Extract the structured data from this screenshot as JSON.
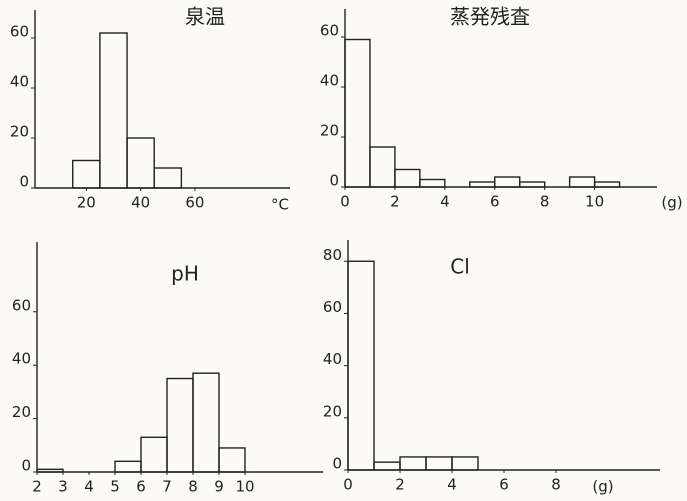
{
  "chart_data": [
    {
      "type": "histogram",
      "title": "泉温",
      "x_label": "°C",
      "color": "#222222",
      "bins": [
        15,
        25,
        35,
        45,
        55
      ],
      "values": [
        11,
        62,
        20,
        8
      ],
      "xlim": [
        0,
        95
      ],
      "xticks": [
        20,
        40,
        60
      ],
      "ylim": [
        0,
        70
      ],
      "yticks": [
        0,
        20,
        40,
        60
      ]
    },
    {
      "type": "histogram",
      "title": "蒸発残査",
      "x_label": "(g)",
      "color": "#222222",
      "bins": [
        0,
        1,
        2,
        3,
        4,
        5,
        6,
        7,
        8,
        9,
        10,
        11
      ],
      "values": [
        59,
        16,
        7,
        3,
        0,
        2,
        4,
        2,
        0,
        4,
        2
      ],
      "xlim": [
        0,
        12.5
      ],
      "xticks": [
        0,
        2,
        4,
        6,
        8,
        10
      ],
      "ylim": [
        0,
        70
      ],
      "yticks": [
        0,
        20,
        40,
        60
      ]
    },
    {
      "type": "histogram",
      "title": "pH",
      "color": "#222222",
      "bins": [
        2,
        3,
        4,
        5,
        6,
        7,
        8,
        9,
        10
      ],
      "values": [
        1,
        0,
        0,
        4,
        13,
        35,
        37,
        9
      ],
      "xlim": [
        2,
        13
      ],
      "xticks": [
        2,
        3,
        4,
        5,
        6,
        7,
        8,
        9,
        10
      ],
      "ylim": [
        0,
        85
      ],
      "yticks": [
        0,
        20,
        40,
        60
      ]
    },
    {
      "type": "histogram",
      "title": "Cl",
      "x_label": "(g)",
      "color": "#222222",
      "bins": [
        0,
        1,
        2,
        3,
        4,
        5
      ],
      "values": [
        80,
        3,
        5,
        5,
        5
      ],
      "xlim": [
        0,
        12
      ],
      "xticks": [
        0,
        2,
        4,
        6,
        8
      ],
      "ylim": [
        0,
        87
      ],
      "yticks": [
        0,
        20,
        40,
        60,
        80
      ]
    }
  ]
}
